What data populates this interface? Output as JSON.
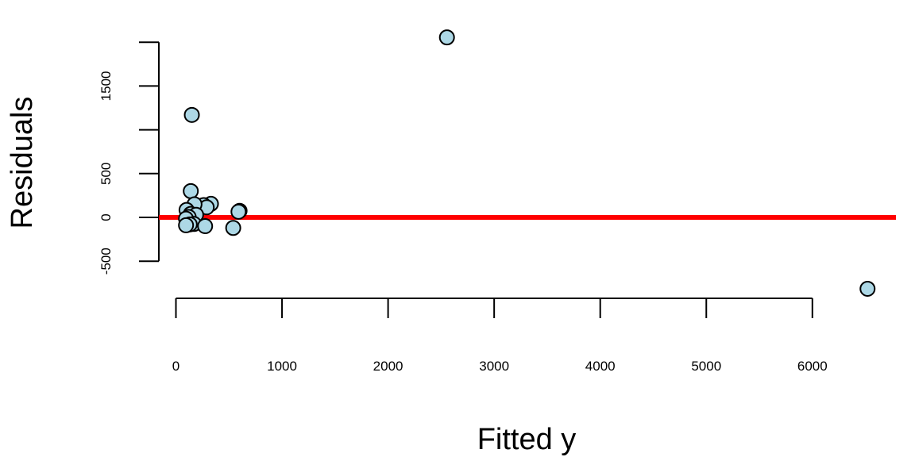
{
  "chart_data": {
    "type": "scatter",
    "title": "",
    "xlabel": "Fitted y",
    "ylabel": "Residuals",
    "xlim": [
      -160,
      6800
    ],
    "ylim": [
      -990,
      2000
    ],
    "xticks": [
      0,
      1000,
      2000,
      3000,
      4000,
      5000,
      6000
    ],
    "xtick_labels": [
      "0",
      "1000",
      "2000",
      "3000",
      "4000",
      "5000",
      "6000"
    ],
    "yticks": [
      -500,
      0,
      500,
      1000,
      1500,
      2000
    ],
    "ytick_labels": [
      "-500",
      "0",
      "500",
      "",
      "1500",
      ""
    ],
    "grid": false,
    "reference_line": {
      "y": 0,
      "color": "#ff0000"
    },
    "marker_fill": "#add8e6",
    "marker_stroke": "#000000",
    "points": [
      {
        "x": 2555,
        "y": 2055
      },
      {
        "x": 150,
        "y": 1170
      },
      {
        "x": 140,
        "y": 300
      },
      {
        "x": 330,
        "y": 155
      },
      {
        "x": 260,
        "y": 140
      },
      {
        "x": 290,
        "y": 115
      },
      {
        "x": 175,
        "y": 150
      },
      {
        "x": 600,
        "y": 75
      },
      {
        "x": 590,
        "y": 65
      },
      {
        "x": 100,
        "y": 85
      },
      {
        "x": 140,
        "y": 40
      },
      {
        "x": 190,
        "y": 30
      },
      {
        "x": 120,
        "y": 5
      },
      {
        "x": 95,
        "y": -15
      },
      {
        "x": 170,
        "y": -75
      },
      {
        "x": 130,
        "y": -80
      },
      {
        "x": 95,
        "y": -90
      },
      {
        "x": 275,
        "y": -100
      },
      {
        "x": 540,
        "y": -120
      },
      {
        "x": 6520,
        "y": -815
      }
    ]
  }
}
